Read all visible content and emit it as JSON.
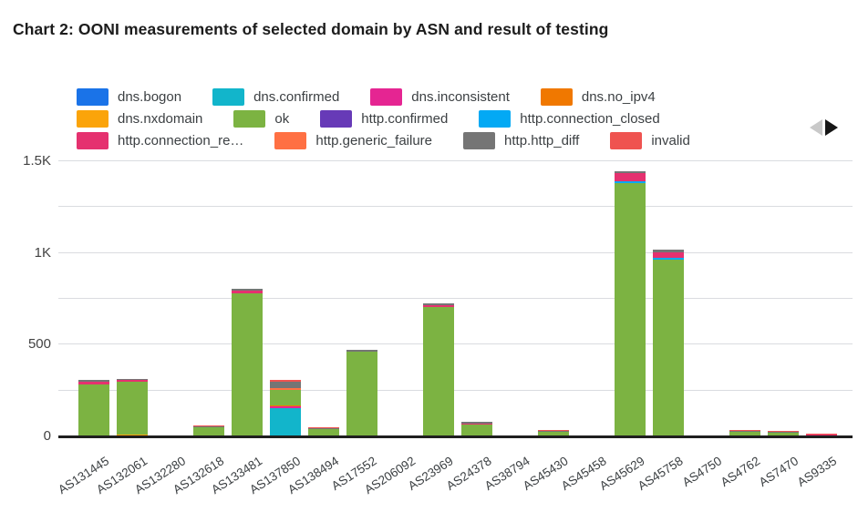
{
  "title": "Chart 2: OONI measurements of selected domain by ASN and result of testing",
  "colors": {
    "background": "#ffffff",
    "grid": "#dadce0",
    "axis_line": "#1f1f1f",
    "axis_text": "#424242",
    "x_label_text": "#3c4043",
    "legend_text": "#3c4043",
    "nav_prev": "#c9c9c9",
    "nav_next": "#161616"
  },
  "palette": [
    {
      "key": "dns.bogon",
      "label": "dns.bogon",
      "color": "#1a73e8"
    },
    {
      "key": "dns.confirmed",
      "label": "dns.confirmed",
      "color": "#12b5cb"
    },
    {
      "key": "dns.inconsistent",
      "label": "dns.inconsistent",
      "color": "#e52592"
    },
    {
      "key": "dns.no_ipv4",
      "label": "dns.no_ipv4",
      "color": "#f07800"
    },
    {
      "key": "dns.nxdomain",
      "label": "dns.nxdomain",
      "color": "#fba40a"
    },
    {
      "key": "ok",
      "label": "ok",
      "color": "#7cb342"
    },
    {
      "key": "http.confirmed",
      "label": "http.confirmed",
      "color": "#673ab7"
    },
    {
      "key": "http.connection_closed",
      "label": "http.connection_closed",
      "color": "#03a9f4"
    },
    {
      "key": "http.connection_reset",
      "label": "http.connection_re…",
      "color": "#e5316f"
    },
    {
      "key": "http.generic_failure",
      "label": "http.generic_failure",
      "color": "#ff7043"
    },
    {
      "key": "http.http_diff",
      "label": "http.http_diff",
      "color": "#757575"
    },
    {
      "key": "invalid",
      "label": "invalid",
      "color": "#ef5350"
    }
  ],
  "legend": {
    "rows": [
      [
        "dns.bogon",
        "dns.confirmed",
        "dns.inconsistent",
        "dns.no_ipv4"
      ],
      [
        "dns.nxdomain",
        "ok",
        "http.confirmed",
        "http.connection_closed"
      ],
      [
        "http.connection_reset",
        "http.generic_failure",
        "http.http_diff",
        "invalid"
      ]
    ]
  },
  "nav": {
    "prev_enabled": false,
    "next_enabled": true
  },
  "chart_data": {
    "type": "bar",
    "stacked": true,
    "title": "Chart 2: OONI measurements of selected domain by ASN and result of testing",
    "xlabel": "",
    "ylabel": "",
    "ylim": [
      0,
      1500
    ],
    "grid_step": 250,
    "grid": true,
    "legend_position": "top",
    "yticks": [
      {
        "v": 0,
        "label": "0"
      },
      {
        "v": 500,
        "label": "500"
      },
      {
        "v": 1000,
        "label": "1K"
      },
      {
        "v": 1500,
        "label": "1.5K"
      }
    ],
    "categories": [
      "AS131445",
      "AS132061",
      "AS132280",
      "AS132618",
      "AS133481",
      "AS137850",
      "AS138494",
      "AS17552",
      "AS206092",
      "AS23969",
      "AS24378",
      "AS38794",
      "AS45430",
      "AS45458",
      "AS45629",
      "AS45758",
      "AS4750",
      "AS4762",
      "AS7470",
      "AS9335"
    ],
    "series": [
      {
        "name": "dns.bogon",
        "values": [
          0,
          0,
          0,
          0,
          0,
          0,
          0,
          0,
          0,
          0,
          0,
          0,
          0,
          0,
          0,
          0,
          0,
          0,
          0,
          0
        ]
      },
      {
        "name": "dns.confirmed",
        "values": [
          0,
          0,
          0,
          0,
          0,
          155,
          0,
          0,
          0,
          0,
          0,
          0,
          0,
          0,
          0,
          0,
          0,
          0,
          0,
          0
        ]
      },
      {
        "name": "dns.inconsistent",
        "values": [
          0,
          0,
          0,
          0,
          0,
          8,
          0,
          0,
          0,
          0,
          0,
          0,
          0,
          0,
          0,
          0,
          0,
          0,
          0,
          0
        ]
      },
      {
        "name": "dns.no_ipv4",
        "values": [
          0,
          0,
          0,
          0,
          0,
          8,
          0,
          0,
          0,
          0,
          0,
          0,
          0,
          0,
          0,
          0,
          0,
          0,
          0,
          0
        ]
      },
      {
        "name": "dns.nxdomain",
        "values": [
          0,
          10,
          0,
          0,
          0,
          0,
          0,
          0,
          0,
          0,
          0,
          0,
          0,
          0,
          0,
          0,
          0,
          0,
          0,
          0
        ]
      },
      {
        "name": "ok",
        "values": [
          285,
          290,
          0,
          50,
          780,
          82,
          40,
          460,
          0,
          705,
          66,
          0,
          25,
          0,
          1380,
          965,
          0,
          23,
          21,
          4
        ]
      },
      {
        "name": "http.confirmed",
        "values": [
          0,
          0,
          0,
          0,
          0,
          0,
          0,
          0,
          0,
          0,
          0,
          0,
          0,
          0,
          0,
          0,
          0,
          0,
          0,
          0
        ]
      },
      {
        "name": "http.connection_closed",
        "values": [
          0,
          0,
          0,
          0,
          0,
          0,
          0,
          0,
          0,
          0,
          0,
          0,
          0,
          0,
          11,
          10,
          0,
          0,
          0,
          0
        ]
      },
      {
        "name": "http.connection_reset",
        "values": [
          14,
          8,
          0,
          0,
          13,
          0,
          0,
          4,
          0,
          8,
          6,
          0,
          0,
          0,
          43,
          26,
          0,
          0,
          0,
          5
        ]
      },
      {
        "name": "http.generic_failure",
        "values": [
          0,
          0,
          0,
          0,
          0,
          12,
          0,
          0,
          0,
          0,
          0,
          0,
          0,
          0,
          0,
          0,
          0,
          0,
          0,
          0
        ]
      },
      {
        "name": "http.http_diff",
        "values": [
          9,
          7,
          0,
          5,
          13,
          34,
          6,
          6,
          0,
          10,
          7,
          0,
          5,
          0,
          10,
          16,
          0,
          6,
          6,
          0
        ]
      },
      {
        "name": "invalid",
        "values": [
          0,
          0,
          5,
          4,
          0,
          10,
          5,
          0,
          0,
          0,
          0,
          0,
          4,
          0,
          0,
          0,
          0,
          4,
          5,
          5
        ]
      }
    ]
  }
}
